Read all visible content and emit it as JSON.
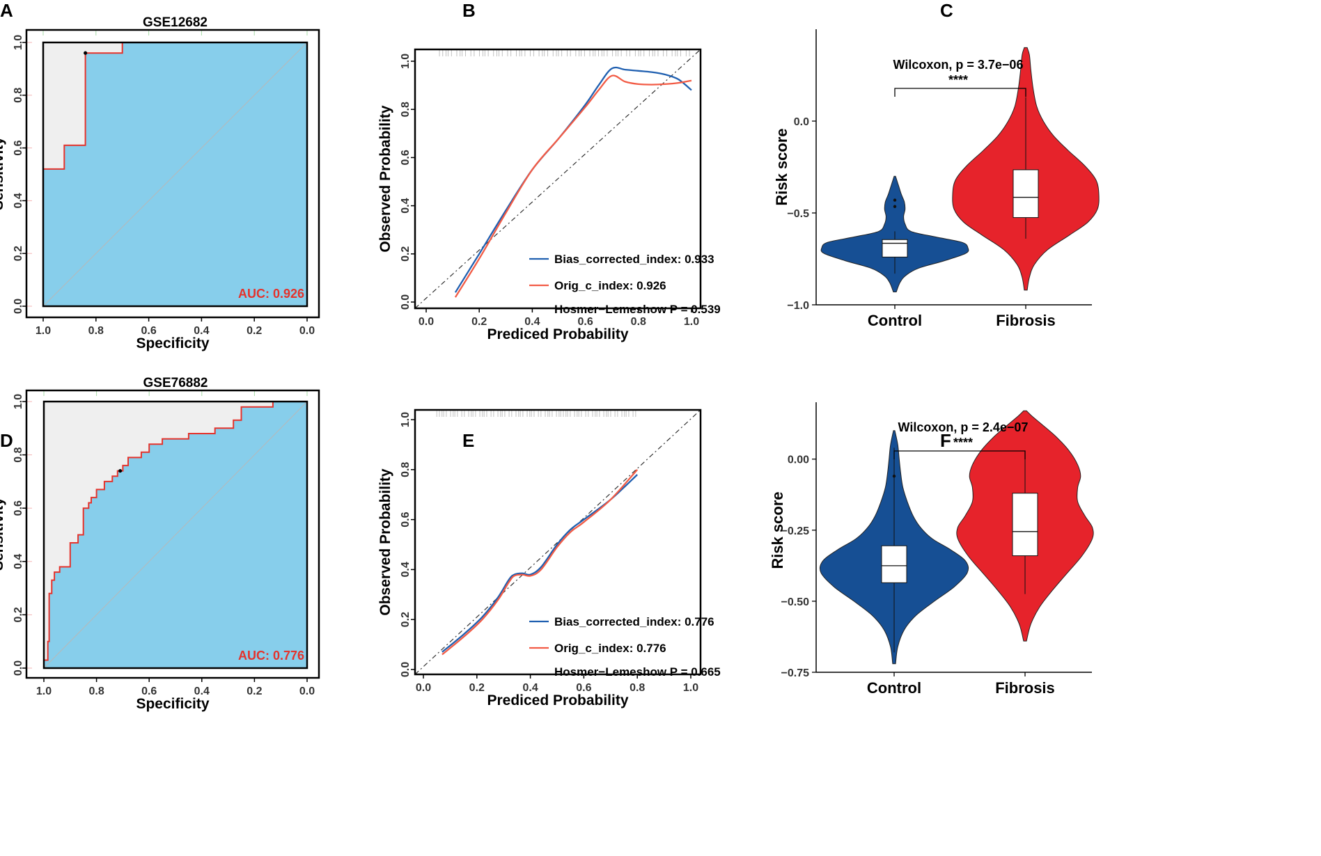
{
  "colors": {
    "roc_fill": "#87ceeb",
    "roc_upper": "#efefef",
    "roc_line": "#e5322b",
    "auc_text": "#e5322b",
    "bias_line": "#1f5fb0",
    "orig_line": "#f25b45",
    "control": "#164f94",
    "fibrosis": "#e6232b"
  },
  "chart_data": [
    {
      "panel": "A",
      "type": "roc",
      "title": "GSE12682",
      "xlabel": "Specificity",
      "ylabel": "Sensitivity",
      "xlim": [
        1.0,
        0.0
      ],
      "ylim": [
        0.0,
        1.0
      ],
      "xticks": [
        "1.0",
        "0.8",
        "0.6",
        "0.4",
        "0.2",
        "0.0"
      ],
      "yticks": [
        "0.0",
        "0.2",
        "0.4",
        "0.6",
        "0.8",
        "1.0"
      ],
      "auc_label": "AUC: 0.926",
      "best_threshold": {
        "specificity": 0.84,
        "sensitivity": 0.96
      },
      "curve": [
        [
          1.0,
          0.0
        ],
        [
          1.0,
          0.52
        ],
        [
          0.92,
          0.52
        ],
        [
          0.92,
          0.61
        ],
        [
          0.84,
          0.61
        ],
        [
          0.84,
          0.96
        ],
        [
          0.7,
          0.96
        ],
        [
          0.7,
          1.0
        ],
        [
          0.0,
          1.0
        ]
      ]
    },
    {
      "panel": "B",
      "type": "calibration",
      "xlabel": "Prediced Probability",
      "ylabel": "Observed Probability",
      "xlim": [
        0.0,
        1.0
      ],
      "ylim": [
        0.0,
        1.0
      ],
      "xticks": [
        "0.0",
        "0.2",
        "0.4",
        "0.6",
        "0.8",
        "1.0"
      ],
      "yticks": [
        "0.0",
        "0.2",
        "0.4",
        "0.6",
        "0.8",
        "1.0"
      ],
      "legend": [
        "Bias_corrected_index: 0.933",
        "Orig_c_index: 0.926",
        "Hosmer−Lemeshow P = 0.539"
      ],
      "series": [
        {
          "name": "Bias_corrected",
          "points": [
            [
              0.11,
              0.04
            ],
            [
              0.2,
              0.2
            ],
            [
              0.3,
              0.38
            ],
            [
              0.4,
              0.55
            ],
            [
              0.5,
              0.68
            ],
            [
              0.6,
              0.82
            ],
            [
              0.65,
              0.9
            ],
            [
              0.7,
              0.97
            ],
            [
              0.75,
              0.965
            ],
            [
              0.8,
              0.96
            ],
            [
              0.85,
              0.955
            ],
            [
              0.9,
              0.945
            ],
            [
              0.95,
              0.925
            ],
            [
              1.0,
              0.88
            ]
          ]
        },
        {
          "name": "Orig",
          "points": [
            [
              0.11,
              0.02
            ],
            [
              0.2,
              0.18
            ],
            [
              0.3,
              0.37
            ],
            [
              0.4,
              0.55
            ],
            [
              0.5,
              0.68
            ],
            [
              0.6,
              0.81
            ],
            [
              0.65,
              0.88
            ],
            [
              0.7,
              0.94
            ],
            [
              0.75,
              0.915
            ],
            [
              0.8,
              0.905
            ],
            [
              0.85,
              0.903
            ],
            [
              0.9,
              0.905
            ],
            [
              0.95,
              0.91
            ],
            [
              1.0,
              0.92
            ]
          ]
        }
      ],
      "rug": "top"
    },
    {
      "panel": "C",
      "type": "violin",
      "ylabel": "Risk score",
      "ylim": [
        -1.0,
        0.5
      ],
      "yticks": [
        -1.0,
        -0.5,
        0.0
      ],
      "ytick_labels": [
        "−1.0",
        "−0.5",
        "0.0"
      ],
      "categories": [
        "Control",
        "Fibrosis"
      ],
      "stat_label": "Wilcoxon, p = 3.7e−06",
      "signif": "****",
      "groups": [
        {
          "name": "Control",
          "min": -0.93,
          "max": -0.3,
          "q1": -0.74,
          "median": -0.665,
          "q3": -0.645,
          "whisker_lo": -0.83,
          "whisker_hi": -0.6,
          "outliers": [
            -0.43,
            -0.465
          ],
          "density": [
            [
              -0.93,
              0.02
            ],
            [
              -0.88,
              0.07
            ],
            [
              -0.84,
              0.15
            ],
            [
              -0.8,
              0.33
            ],
            [
              -0.76,
              0.68
            ],
            [
              -0.72,
              0.97
            ],
            [
              -0.69,
              1.0
            ],
            [
              -0.66,
              0.92
            ],
            [
              -0.63,
              0.55
            ],
            [
              -0.6,
              0.22
            ],
            [
              -0.56,
              0.14
            ],
            [
              -0.52,
              0.12
            ],
            [
              -0.48,
              0.14
            ],
            [
              -0.44,
              0.13
            ],
            [
              -0.4,
              0.09
            ],
            [
              -0.35,
              0.05
            ],
            [
              -0.3,
              0.01
            ]
          ]
        },
        {
          "name": "Fibrosis",
          "min": -0.92,
          "max": 0.4,
          "q1": -0.525,
          "median": -0.415,
          "q3": -0.265,
          "whisker_lo": -0.64,
          "whisker_hi": 0.13,
          "outliers": [],
          "density": [
            [
              -0.92,
              0.02
            ],
            [
              -0.85,
              0.05
            ],
            [
              -0.78,
              0.12
            ],
            [
              -0.7,
              0.3
            ],
            [
              -0.62,
              0.6
            ],
            [
              -0.55,
              0.85
            ],
            [
              -0.48,
              0.98
            ],
            [
              -0.4,
              1.0
            ],
            [
              -0.32,
              0.96
            ],
            [
              -0.24,
              0.8
            ],
            [
              -0.16,
              0.58
            ],
            [
              -0.08,
              0.38
            ],
            [
              0.0,
              0.24
            ],
            [
              0.08,
              0.15
            ],
            [
              0.18,
              0.1
            ],
            [
              0.28,
              0.07
            ],
            [
              0.36,
              0.05
            ],
            [
              0.4,
              0.02
            ]
          ]
        }
      ]
    },
    {
      "panel": "D",
      "type": "roc",
      "title": "GSE76882",
      "xlabel": "Specificity",
      "ylabel": "Sensitivity",
      "xlim": [
        1.0,
        0.0
      ],
      "ylim": [
        0.0,
        1.0
      ],
      "xticks": [
        "1.0",
        "0.8",
        "0.6",
        "0.4",
        "0.2",
        "0.0"
      ],
      "yticks": [
        "0.0",
        "0.2",
        "0.4",
        "0.6",
        "0.8",
        "1.0"
      ],
      "auc_label": "AUC: 0.776",
      "best_threshold": {
        "specificity": 0.71,
        "sensitivity": 0.74
      },
      "curve": [
        [
          1.0,
          0.0
        ],
        [
          1.0,
          0.03
        ],
        [
          0.985,
          0.03
        ],
        [
          0.985,
          0.1
        ],
        [
          0.98,
          0.1
        ],
        [
          0.98,
          0.28
        ],
        [
          0.97,
          0.28
        ],
        [
          0.97,
          0.33
        ],
        [
          0.96,
          0.33
        ],
        [
          0.96,
          0.36
        ],
        [
          0.94,
          0.36
        ],
        [
          0.94,
          0.38
        ],
        [
          0.9,
          0.38
        ],
        [
          0.9,
          0.47
        ],
        [
          0.87,
          0.47
        ],
        [
          0.87,
          0.5
        ],
        [
          0.85,
          0.5
        ],
        [
          0.85,
          0.6
        ],
        [
          0.83,
          0.6
        ],
        [
          0.83,
          0.62
        ],
        [
          0.82,
          0.62
        ],
        [
          0.82,
          0.64
        ],
        [
          0.8,
          0.64
        ],
        [
          0.8,
          0.67
        ],
        [
          0.77,
          0.67
        ],
        [
          0.77,
          0.7
        ],
        [
          0.74,
          0.7
        ],
        [
          0.74,
          0.72
        ],
        [
          0.72,
          0.72
        ],
        [
          0.72,
          0.74
        ],
        [
          0.7,
          0.74
        ],
        [
          0.7,
          0.76
        ],
        [
          0.68,
          0.76
        ],
        [
          0.68,
          0.79
        ],
        [
          0.63,
          0.79
        ],
        [
          0.63,
          0.81
        ],
        [
          0.6,
          0.81
        ],
        [
          0.6,
          0.84
        ],
        [
          0.55,
          0.84
        ],
        [
          0.55,
          0.86
        ],
        [
          0.45,
          0.86
        ],
        [
          0.45,
          0.88
        ],
        [
          0.35,
          0.88
        ],
        [
          0.35,
          0.9
        ],
        [
          0.28,
          0.9
        ],
        [
          0.28,
          0.93
        ],
        [
          0.25,
          0.93
        ],
        [
          0.25,
          0.98
        ],
        [
          0.13,
          0.98
        ],
        [
          0.13,
          1.0
        ],
        [
          0.0,
          1.0
        ]
      ]
    },
    {
      "panel": "E",
      "type": "calibration",
      "xlabel": "Prediced Probability",
      "ylabel": "Observed Probability",
      "xlim": [
        0.0,
        1.0
      ],
      "ylim": [
        0.0,
        1.0
      ],
      "xticks": [
        "0.0",
        "0.2",
        "0.4",
        "0.6",
        "0.8",
        "1.0"
      ],
      "yticks": [
        "0.0",
        "0.2",
        "0.4",
        "0.6",
        "0.8",
        "1.0"
      ],
      "legend": [
        "Bias_corrected_index: 0.776",
        "Orig_c_index: 0.776",
        "Hosmer−Lemeshow P = 0.665"
      ],
      "series": [
        {
          "name": "Bias_corrected",
          "points": [
            [
              0.07,
              0.07
            ],
            [
              0.15,
              0.14
            ],
            [
              0.22,
              0.21
            ],
            [
              0.28,
              0.29
            ],
            [
              0.32,
              0.36
            ],
            [
              0.34,
              0.38
            ],
            [
              0.37,
              0.385
            ],
            [
              0.4,
              0.38
            ],
            [
              0.44,
              0.41
            ],
            [
              0.5,
              0.5
            ],
            [
              0.55,
              0.56
            ],
            [
              0.6,
              0.6
            ],
            [
              0.7,
              0.68
            ],
            [
              0.8,
              0.78
            ]
          ]
        },
        {
          "name": "Orig",
          "points": [
            [
              0.07,
              0.06
            ],
            [
              0.15,
              0.13
            ],
            [
              0.22,
              0.2
            ],
            [
              0.28,
              0.28
            ],
            [
              0.32,
              0.35
            ],
            [
              0.34,
              0.375
            ],
            [
              0.37,
              0.38
            ],
            [
              0.4,
              0.375
            ],
            [
              0.44,
              0.4
            ],
            [
              0.5,
              0.49
            ],
            [
              0.55,
              0.55
            ],
            [
              0.6,
              0.59
            ],
            [
              0.7,
              0.68
            ],
            [
              0.8,
              0.8
            ]
          ]
        }
      ],
      "rug": "top"
    },
    {
      "panel": "F",
      "type": "violin",
      "ylabel": "Risk score",
      "ylim": [
        -0.75,
        0.2
      ],
      "yticks": [
        -0.75,
        -0.5,
        -0.25,
        0.0
      ],
      "ytick_labels": [
        "−0.75",
        "−0.50",
        "−0.25",
        "0.00"
      ],
      "categories": [
        "Control",
        "Fibrosis"
      ],
      "stat_label": "Wilcoxon, p = 2.4e−07",
      "signif": "****",
      "groups": [
        {
          "name": "Control",
          "min": -0.72,
          "max": 0.1,
          "q1": -0.435,
          "median": -0.375,
          "q3": -0.305,
          "whisker_lo": -0.68,
          "whisker_hi": 0.04,
          "outliers": [
            -0.06
          ],
          "density": [
            [
              -0.72,
              0.02
            ],
            [
              -0.66,
              0.05
            ],
            [
              -0.6,
              0.14
            ],
            [
              -0.55,
              0.3
            ],
            [
              -0.5,
              0.55
            ],
            [
              -0.45,
              0.82
            ],
            [
              -0.4,
              1.0
            ],
            [
              -0.36,
              0.98
            ],
            [
              -0.32,
              0.78
            ],
            [
              -0.28,
              0.52
            ],
            [
              -0.24,
              0.36
            ],
            [
              -0.2,
              0.26
            ],
            [
              -0.15,
              0.18
            ],
            [
              -0.1,
              0.12
            ],
            [
              -0.05,
              0.09
            ],
            [
              0.0,
              0.07
            ],
            [
              0.05,
              0.05
            ],
            [
              0.1,
              0.01
            ]
          ]
        },
        {
          "name": "Fibrosis",
          "min": -0.64,
          "max": 0.17,
          "q1": -0.34,
          "median": -0.255,
          "q3": -0.12,
          "whisker_lo": -0.475,
          "whisker_hi": 0.02,
          "outliers": [],
          "density": [
            [
              -0.64,
              0.02
            ],
            [
              -0.58,
              0.08
            ],
            [
              -0.52,
              0.2
            ],
            [
              -0.46,
              0.38
            ],
            [
              -0.4,
              0.58
            ],
            [
              -0.34,
              0.78
            ],
            [
              -0.28,
              0.92
            ],
            [
              -0.24,
              0.92
            ],
            [
              -0.2,
              0.82
            ],
            [
              -0.15,
              0.72
            ],
            [
              -0.1,
              0.72
            ],
            [
              -0.06,
              0.76
            ],
            [
              -0.02,
              0.72
            ],
            [
              0.03,
              0.6
            ],
            [
              0.08,
              0.42
            ],
            [
              0.12,
              0.24
            ],
            [
              0.15,
              0.1
            ],
            [
              0.17,
              0.02
            ]
          ]
        }
      ]
    }
  ]
}
